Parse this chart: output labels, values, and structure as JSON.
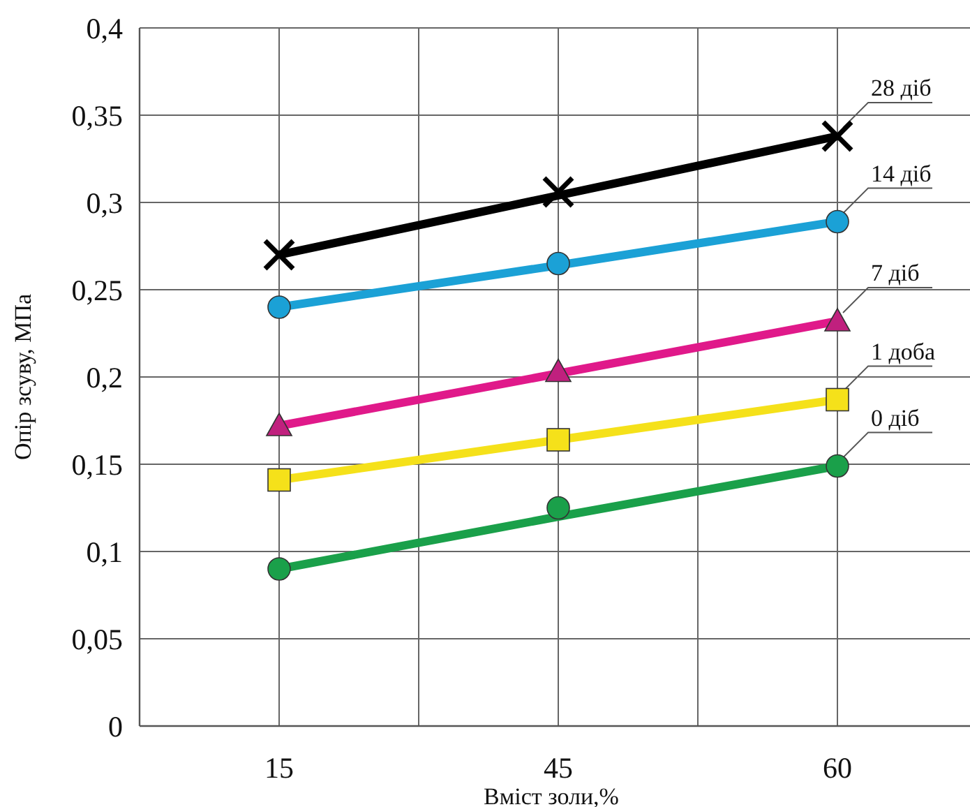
{
  "chart_data": {
    "type": "line",
    "xlabel": "Вміст золи,%",
    "ylabel": "Опір зсуву, МПа",
    "categories": [
      "15",
      "45",
      "60"
    ],
    "ylim": [
      0,
      0.4
    ],
    "yticks": [
      0,
      {
        "value": 0.05,
        "label": "0,05"
      },
      {
        "value": 0.1,
        "label": "0,1"
      },
      {
        "value": 0.15,
        "label": "0,15"
      },
      {
        "value": 0.2,
        "label": "0,2"
      },
      {
        "value": 0.25,
        "label": "0,25"
      },
      {
        "value": 0.3,
        "label": "0,3"
      },
      {
        "value": 0.35,
        "label": "0,35"
      },
      {
        "value": 0.4,
        "label": "0,4"
      }
    ],
    "grid": true,
    "series": [
      {
        "name": "28 діб",
        "color": "#000000",
        "values": [
          0.27,
          0.304,
          0.338
        ],
        "marker": "none"
      },
      {
        "type": "scatter",
        "color": "#000000",
        "x": [
          "15",
          "45",
          "60"
        ],
        "values": [
          0.27,
          0.306,
          0.338
        ],
        "marker": "cross"
      },
      {
        "name": "14 діб",
        "color": "#1ba1d6",
        "values": [
          0.24,
          0.264,
          0.289
        ],
        "marker": "none"
      },
      {
        "type": "scatter",
        "color": "#1ba1d6",
        "x": [
          "15",
          "45",
          "60"
        ],
        "values": [
          0.24,
          0.265,
          0.289
        ],
        "marker": "circle"
      },
      {
        "name": "7 діб",
        "color": "#e0198a",
        "values": [
          0.172,
          0.202,
          0.232
        ],
        "marker": "none"
      },
      {
        "type": "scatter",
        "color": "#c0207e",
        "x": [
          "15",
          "45",
          "60"
        ],
        "values": [
          0.172,
          0.203,
          0.232
        ],
        "marker": "triangle"
      },
      {
        "name": "1 доба",
        "color": "#f5e11a",
        "values": [
          0.141,
          0.164,
          0.187
        ],
        "marker": "none"
      },
      {
        "type": "scatter",
        "color": "#f5e11a",
        "x": [
          "15",
          "45",
          "60"
        ],
        "values": [
          0.141,
          0.164,
          0.187
        ],
        "marker": "square"
      },
      {
        "name": "0 діб",
        "color": "#1aa04a",
        "values": [
          0.09,
          0.12,
          0.149
        ],
        "marker": "none"
      },
      {
        "type": "scatter",
        "color": "#1aa04a",
        "x": [
          "15",
          "45",
          "60"
        ],
        "values": [
          0.09,
          0.125,
          0.149
        ],
        "marker": "circle"
      }
    ]
  }
}
